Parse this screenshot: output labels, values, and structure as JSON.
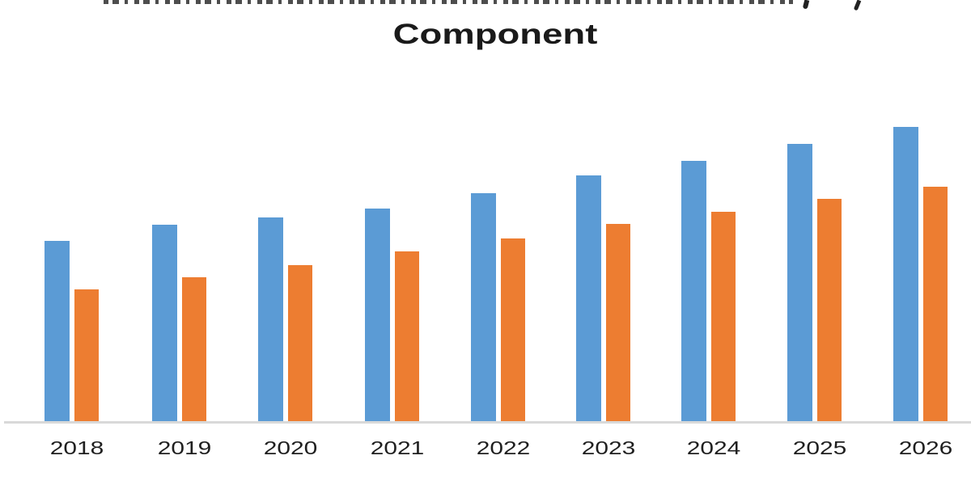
{
  "title": {
    "line1_note": "first title line cropped at top edge; only bottom fragments of letters and a ', (b)y' descender are visible",
    "line2": "Component"
  },
  "chart_data": {
    "type": "bar",
    "title": "Component",
    "subtitle": "",
    "xlabel": "",
    "ylabel": "",
    "categories": [
      "2018",
      "2019",
      "2020",
      "2021",
      "2022",
      "2023",
      "2024",
      "2025",
      "2026"
    ],
    "series": [
      {
        "name": "series-blue",
        "color": "#5B9BD5",
        "values": [
          224,
          244,
          253,
          264,
          283,
          305,
          323,
          344,
          365
        ]
      },
      {
        "name": "series-orange",
        "color": "#ED7D31",
        "values": [
          164,
          179,
          194,
          211,
          227,
          245,
          260,
          276,
          291
        ]
      }
    ],
    "value_units": "relative bar height in screen pixels (no y-axis, gridlines or data labels are visible)",
    "ylim": [
      0,
      432
    ],
    "grid": false,
    "legend_position": "none",
    "axis_line_color": "#D9D9D9",
    "tick_label_color": "#1F1F1F",
    "background_color": "#FFFFFF"
  }
}
